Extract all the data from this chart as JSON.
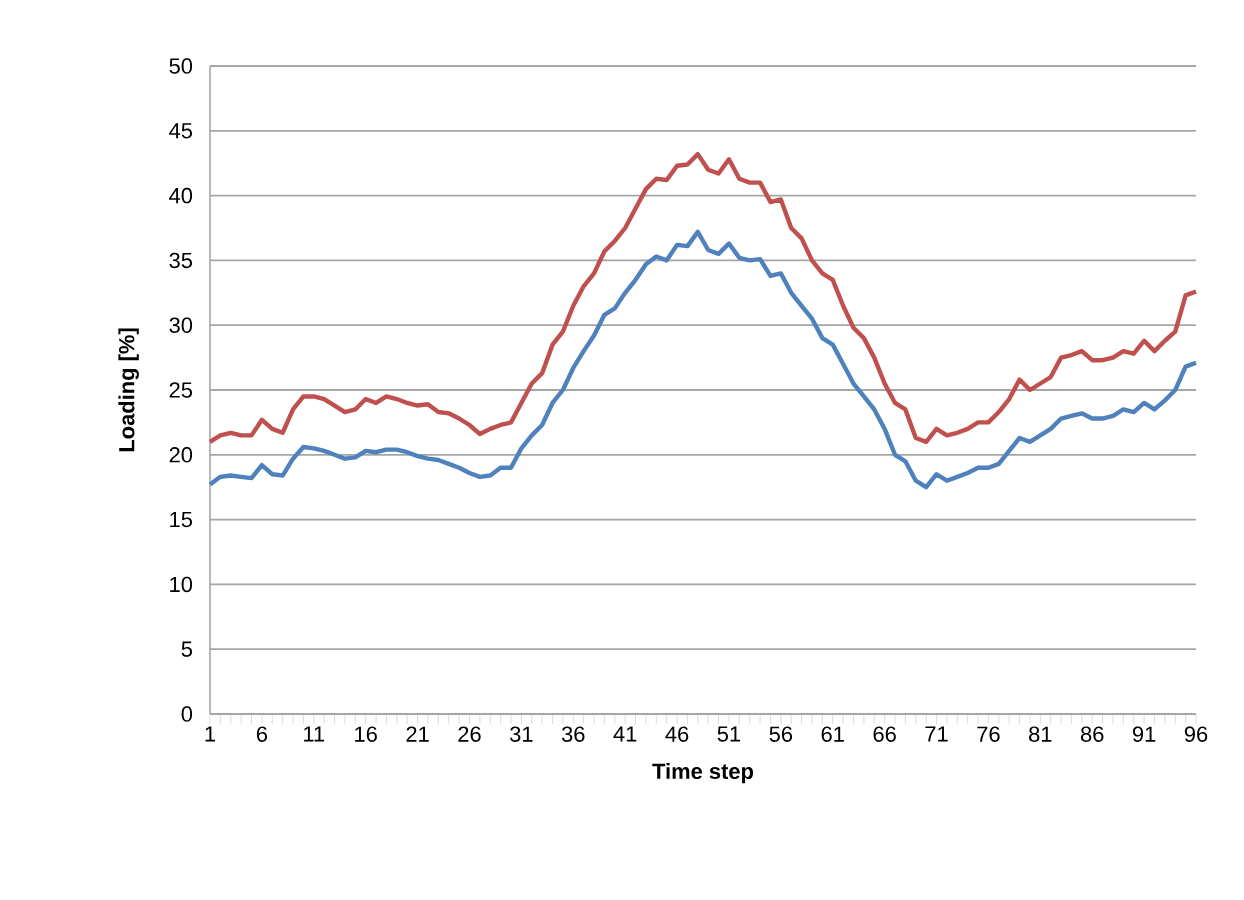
{
  "chart_data": {
    "type": "line",
    "xlabel": "Time step",
    "ylabel": "Loading [%]",
    "categories": [
      "1",
      null,
      null,
      null,
      null,
      "6",
      null,
      null,
      null,
      null,
      "11",
      null,
      null,
      null,
      null,
      "16",
      null,
      null,
      null,
      null,
      "21",
      null,
      null,
      null,
      null,
      "26",
      null,
      null,
      null,
      null,
      "31",
      null,
      null,
      null,
      null,
      "36",
      null,
      null,
      null,
      null,
      "41",
      null,
      null,
      null,
      null,
      "46",
      null,
      null,
      null,
      null,
      "51",
      null,
      null,
      null,
      null,
      "56",
      null,
      null,
      null,
      null,
      "61",
      null,
      null,
      null,
      null,
      "66",
      null,
      null,
      null,
      null,
      "71",
      null,
      null,
      null,
      null,
      "76",
      null,
      null,
      null,
      null,
      "81",
      null,
      null,
      null,
      null,
      "86",
      null,
      null,
      null,
      null,
      "91",
      null,
      null,
      null,
      null,
      "96"
    ],
    "series": [
      {
        "color": "#c0504d",
        "values": [
          21,
          21.5,
          21.7,
          21.5,
          21.5,
          22.7,
          22,
          21.7,
          23.5,
          24.5,
          24.5,
          24.3,
          23.8,
          23.3,
          23.5,
          24.3,
          24,
          24.5,
          24.3,
          24,
          23.8,
          23.9,
          23.3,
          23.2,
          22.8,
          22.3,
          21.6,
          22,
          22.3,
          22.5,
          24,
          25.5,
          26.3,
          28.5,
          29.5,
          31.5,
          33,
          34,
          35.7,
          36.5,
          37.5,
          39,
          40.5,
          41.3,
          41.2,
          42.3,
          42.4,
          43.2,
          42,
          41.7,
          42.8,
          41.3,
          41,
          41,
          39.5,
          39.7,
          37.5,
          36.7,
          35,
          34,
          33.5,
          31.5,
          29.8,
          29,
          27.5,
          25.5,
          24,
          23.5,
          21.3,
          21,
          22,
          21.5,
          21.7,
          22,
          22.5,
          22.5,
          23.3,
          24.3,
          25.8,
          25,
          25.5,
          26,
          27.5,
          27.7,
          28,
          27.3,
          27.3,
          27.5,
          28,
          27.8,
          28.8,
          28,
          28.8,
          29.5,
          32.3,
          32.6
        ]
      },
      {
        "color": "#4f81bd",
        "values": [
          17.7,
          18.3,
          18.4,
          18.3,
          18.2,
          19.2,
          18.5,
          18.4,
          19.7,
          20.6,
          20.5,
          20.3,
          20,
          19.7,
          19.8,
          20.3,
          20.2,
          20.4,
          20.4,
          20.2,
          19.9,
          19.7,
          19.6,
          19.3,
          19,
          18.6,
          18.3,
          18.4,
          19,
          19,
          20.5,
          21.5,
          22.3,
          24,
          25,
          26.7,
          28,
          29.2,
          30.8,
          31.3,
          32.5,
          33.5,
          34.7,
          35.3,
          35,
          36.2,
          36.1,
          37.2,
          35.8,
          35.5,
          36.3,
          35.2,
          35,
          35.1,
          33.8,
          34,
          32.5,
          31.5,
          30.5,
          29,
          28.5,
          27,
          25.5,
          24.5,
          23.5,
          22,
          20,
          19.5,
          18,
          17.5,
          18.5,
          18,
          18.3,
          18.6,
          19,
          19,
          19.3,
          20.3,
          21.3,
          21,
          21.5,
          22,
          22.8,
          23,
          23.2,
          22.8,
          22.8,
          23,
          23.5,
          23.3,
          24,
          23.5,
          24.2,
          25,
          26.8,
          27.1
        ]
      }
    ],
    "ylim": [
      0,
      50
    ],
    "yticks": [
      0,
      5,
      10,
      15,
      20,
      25,
      30,
      35,
      40,
      45,
      50
    ],
    "grid": "y",
    "marker": "none",
    "line_style": "solid"
  }
}
